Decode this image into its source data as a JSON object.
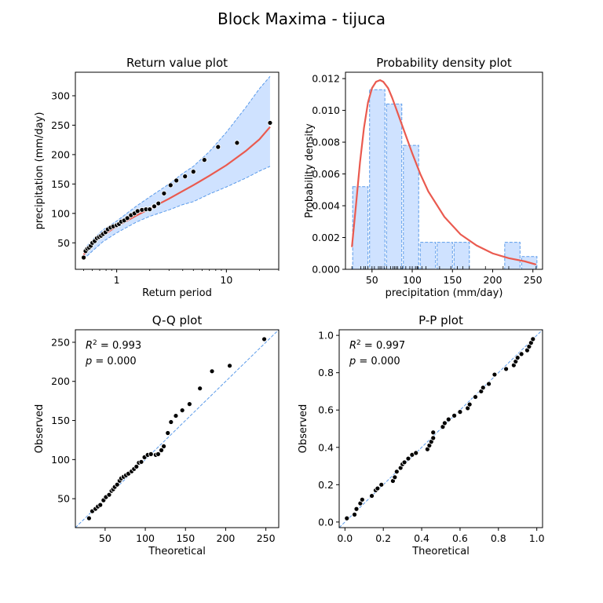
{
  "figure": {
    "title": "Block Maxima - tijuca"
  },
  "colors": {
    "band": "#cfe2ff",
    "band_edge": "#5b9bea",
    "fit": "#ea5a4f",
    "points": "#000000"
  },
  "chart_data": [
    {
      "type": "scatter",
      "panel": "return-value",
      "title": "Return value plot",
      "xlabel": "Return period",
      "ylabel": "precipitation (mm/day)",
      "xscale": "log",
      "xlim": [
        0.42,
        30
      ],
      "ylim": [
        5,
        340
      ],
      "xticks": [
        1,
        10
      ],
      "xtick_labels": [
        "1",
        "10"
      ],
      "yticks": [
        50,
        100,
        150,
        200,
        250,
        300
      ],
      "fit_curve": {
        "x": [
          0.5,
          0.6,
          0.75,
          1,
          1.5,
          2,
          3,
          4,
          5,
          7,
          10,
          15,
          20,
          25
        ],
        "y": [
          30,
          48,
          63,
          78,
          96,
          108,
          125,
          138,
          148,
          164,
          182,
          206,
          226,
          247
        ]
      },
      "confidence_band": {
        "x": [
          0.5,
          0.6,
          0.75,
          1,
          1.5,
          2,
          3,
          4,
          5,
          7,
          10,
          15,
          20,
          25
        ],
        "upper": [
          38,
          55,
          72,
          87,
          112,
          128,
          150,
          168,
          180,
          205,
          238,
          280,
          312,
          333
        ],
        "lower": [
          22,
          36,
          52,
          67,
          85,
          95,
          106,
          115,
          120,
          133,
          145,
          160,
          172,
          180
        ]
      },
      "points": {
        "x": [
          0.5,
          0.52,
          0.54,
          0.56,
          0.58,
          0.6,
          0.63,
          0.66,
          0.69,
          0.72,
          0.75,
          0.79,
          0.83,
          0.88,
          0.93,
          1.0,
          1.05,
          1.1,
          1.17,
          1.25,
          1.35,
          1.45,
          1.55,
          1.7,
          1.85,
          2.0,
          2.2,
          2.4,
          2.7,
          3.1,
          3.5,
          4.2,
          5.0,
          6.3,
          8.4,
          12.5,
          25
        ],
        "y": [
          25,
          36,
          40,
          42,
          45,
          50,
          53,
          58,
          60,
          62,
          65,
          68,
          73,
          76,
          78,
          80,
          82,
          86,
          88,
          92,
          97,
          100,
          104,
          106,
          107,
          107,
          112,
          117,
          134,
          148,
          156,
          163,
          171,
          191,
          213,
          220,
          254
        ]
      }
    },
    {
      "type": "bar",
      "panel": "probability-density",
      "title": "Probability density plot",
      "xlabel": "precipitation (mm/day)",
      "ylabel": "Probability density",
      "xlim": [
        17,
        262
      ],
      "ylim": [
        0,
        0.0124
      ],
      "xticks": [
        50,
        100,
        150,
        200,
        250
      ],
      "yticks": [
        0.0,
        0.002,
        0.004,
        0.006,
        0.008,
        0.01,
        0.012
      ],
      "ytick_labels": [
        "0.000",
        "0.002",
        "0.004",
        "0.006",
        "0.008",
        "0.010",
        "0.012"
      ],
      "bin_edges": [
        25,
        46,
        67,
        88,
        109,
        130,
        151,
        172,
        193,
        214,
        235,
        256
      ],
      "densities": [
        0.0052,
        0.0113,
        0.0104,
        0.0078,
        0.0017,
        0.0017,
        0.0017,
        0.0,
        0.0,
        0.0017,
        0.0008
      ],
      "pdf_curve": {
        "x": [
          25,
          30,
          35,
          40,
          45,
          50,
          55,
          60,
          64,
          70,
          75,
          80,
          90,
          100,
          110,
          120,
          140,
          160,
          180,
          200,
          220,
          240,
          254
        ],
        "y": [
          0.0014,
          0.004,
          0.0067,
          0.0089,
          0.0105,
          0.0114,
          0.0118,
          0.0119,
          0.0118,
          0.0114,
          0.0108,
          0.0101,
          0.0087,
          0.0073,
          0.006,
          0.0049,
          0.0033,
          0.0022,
          0.0015,
          0.001,
          0.0007,
          0.0005,
          0.0003
        ]
      },
      "rug": [
        25,
        36,
        40,
        42,
        45,
        50,
        53,
        58,
        60,
        62,
        65,
        68,
        73,
        76,
        78,
        80,
        82,
        86,
        88,
        92,
        97,
        100,
        104,
        106,
        107,
        112,
        117,
        134,
        148,
        156,
        163,
        171,
        191,
        213,
        220,
        254
      ]
    },
    {
      "type": "scatter",
      "panel": "qq",
      "title": "Q-Q plot",
      "xlabel": "Theoretical",
      "ylabel": "Observed",
      "xlim": [
        13,
        266
      ],
      "ylim": [
        13,
        266
      ],
      "xticks": [
        50,
        100,
        150,
        200,
        250
      ],
      "yticks": [
        50,
        100,
        150,
        200,
        250
      ],
      "stats": {
        "r2": "0.993",
        "p": "0.000"
      },
      "points": {
        "x": [
          30,
          34,
          38,
          41,
          44,
          48,
          51,
          55,
          58,
          60,
          62,
          65,
          68,
          70,
          73,
          76,
          79,
          83,
          86,
          89,
          92,
          95,
          99,
          103,
          107,
          113,
          116,
          120,
          123,
          128,
          132,
          138,
          146,
          155,
          168,
          183,
          205,
          248
        ],
        "y": [
          25,
          34,
          37,
          40,
          42,
          48,
          52,
          55,
          60,
          62,
          65,
          68,
          73,
          76,
          78,
          80,
          82,
          85,
          88,
          91,
          96,
          97,
          103,
          106,
          107,
          106,
          107,
          112,
          117,
          134,
          148,
          156,
          163,
          171,
          191,
          213,
          220,
          254
        ]
      }
    },
    {
      "type": "scatter",
      "panel": "pp",
      "title": "P-P plot",
      "xlabel": "Theoretical",
      "ylabel": "Observed",
      "xlim": [
        -0.03,
        1.03
      ],
      "ylim": [
        -0.03,
        1.03
      ],
      "xticks": [
        0.0,
        0.2,
        0.4,
        0.6,
        0.8,
        1.0
      ],
      "xtick_labels": [
        "0.0",
        "0.2",
        "0.4",
        "0.6",
        "0.8",
        "1.0"
      ],
      "yticks": [
        0.0,
        0.2,
        0.4,
        0.6,
        0.8,
        1.0
      ],
      "ytick_labels": [
        "0.0",
        "0.2",
        "0.4",
        "0.6",
        "0.8",
        "1.0"
      ],
      "stats": {
        "r2": "0.997",
        "p": "0.000"
      },
      "points": {
        "x": [
          0.01,
          0.05,
          0.06,
          0.08,
          0.09,
          0.14,
          0.16,
          0.17,
          0.19,
          0.25,
          0.26,
          0.27,
          0.29,
          0.3,
          0.31,
          0.33,
          0.35,
          0.37,
          0.43,
          0.44,
          0.45,
          0.46,
          0.46,
          0.51,
          0.52,
          0.54,
          0.57,
          0.6,
          0.64,
          0.65,
          0.68,
          0.71,
          0.72,
          0.75,
          0.78,
          0.84,
          0.88,
          0.89,
          0.9,
          0.92,
          0.95,
          0.96,
          0.97,
          0.98
        ],
        "y": [
          0.02,
          0.04,
          0.07,
          0.1,
          0.12,
          0.14,
          0.17,
          0.18,
          0.2,
          0.22,
          0.24,
          0.27,
          0.29,
          0.31,
          0.32,
          0.34,
          0.36,
          0.37,
          0.39,
          0.41,
          0.43,
          0.45,
          0.48,
          0.51,
          0.53,
          0.55,
          0.57,
          0.59,
          0.61,
          0.63,
          0.67,
          0.7,
          0.72,
          0.74,
          0.79,
          0.82,
          0.84,
          0.86,
          0.88,
          0.9,
          0.92,
          0.94,
          0.96,
          0.98
        ]
      }
    }
  ]
}
